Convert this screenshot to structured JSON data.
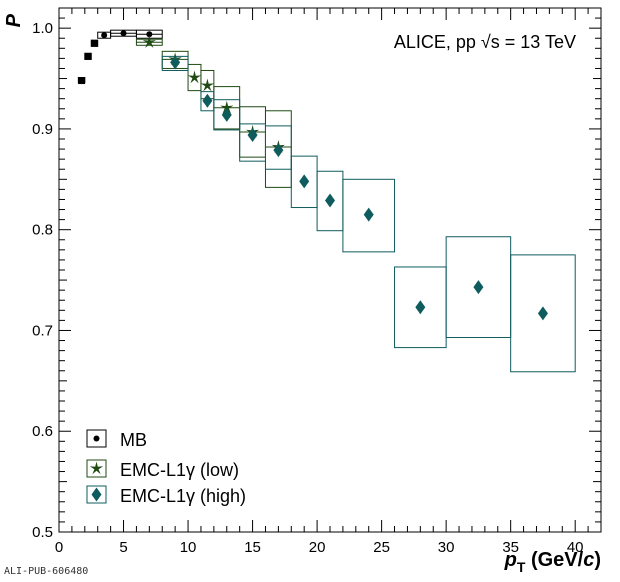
{
  "pub_id": "ALI-PUB-606480",
  "chart_data": {
    "type": "scatter",
    "annotation": "ALICE, pp √s = 13 TeV",
    "ylabel": "P",
    "xlabel_parts": [
      "p",
      "T",
      " (GeV/",
      "c",
      ")"
    ],
    "xlim": [
      0,
      42
    ],
    "ylim": [
      0.5,
      1.02
    ],
    "xticks": [
      0,
      5,
      10,
      15,
      20,
      25,
      30,
      35,
      40
    ],
    "yticks": [
      0.5,
      0.6,
      0.7,
      0.8,
      0.9,
      1.0
    ],
    "ytick_labels": [
      "0.5",
      "0.6",
      "0.7",
      "0.8",
      "0.9",
      "1.0"
    ],
    "legend_position": "bottom-left",
    "series": [
      {
        "name": "MB",
        "marker": "circle",
        "color": "#000000",
        "points": [
          {
            "x": 1.75,
            "y": 0.948,
            "xlo": 1.5,
            "xhi": 2.0,
            "slo": 0.946,
            "shi": 0.951
          },
          {
            "x": 2.25,
            "y": 0.972,
            "xlo": 2.0,
            "xhi": 2.5,
            "slo": 0.969,
            "shi": 0.975
          },
          {
            "x": 2.75,
            "y": 0.985,
            "xlo": 2.5,
            "xhi": 3.0,
            "slo": 0.982,
            "shi": 0.988
          },
          {
            "x": 3.5,
            "y": 0.993,
            "xlo": 3.0,
            "xhi": 4.0,
            "slo": 0.99,
            "shi": 0.996
          },
          {
            "x": 5.0,
            "y": 0.995,
            "xlo": 4.0,
            "xhi": 6.0,
            "slo": 0.992,
            "shi": 0.998
          },
          {
            "x": 7.0,
            "y": 0.994,
            "xlo": 6.0,
            "xhi": 8.0,
            "slo": 0.99,
            "shi": 0.998
          }
        ]
      },
      {
        "name": "EMC-L1γ (low)",
        "marker": "star",
        "color": "#1f4a12",
        "points": [
          {
            "x": 7.0,
            "y": 0.986,
            "xlo": 6.0,
            "xhi": 8.0,
            "slo": 0.983,
            "shi": 0.989
          },
          {
            "x": 9.0,
            "y": 0.969,
            "xlo": 8.0,
            "xhi": 10.0,
            "slo": 0.96,
            "shi": 0.977
          },
          {
            "x": 10.5,
            "y": 0.951,
            "xlo": 10.0,
            "xhi": 11.0,
            "slo": 0.938,
            "shi": 0.964
          },
          {
            "x": 11.5,
            "y": 0.943,
            "xlo": 11.0,
            "xhi": 12.0,
            "slo": 0.93,
            "shi": 0.958
          },
          {
            "x": 13.0,
            "y": 0.921,
            "xlo": 12.0,
            "xhi": 14.0,
            "slo": 0.9,
            "shi": 0.942
          },
          {
            "x": 15.0,
            "y": 0.897,
            "xlo": 14.0,
            "xhi": 16.0,
            "slo": 0.872,
            "shi": 0.922
          },
          {
            "x": 17.0,
            "y": 0.882,
            "xlo": 16.0,
            "xhi": 18.0,
            "slo": 0.842,
            "shi": 0.918
          }
        ]
      },
      {
        "name": "EMC-L1γ (high)",
        "marker": "diamond",
        "color": "#0f5c5e",
        "points": [
          {
            "x": 9.0,
            "y": 0.966,
            "xlo": 8.0,
            "xhi": 10.0,
            "slo": 0.958,
            "shi": 0.972
          },
          {
            "x": 11.5,
            "y": 0.928,
            "xlo": 11.0,
            "xhi": 12.0,
            "slo": 0.918,
            "shi": 0.937
          },
          {
            "x": 13.0,
            "y": 0.914,
            "xlo": 12.0,
            "xhi": 14.0,
            "slo": 0.899,
            "shi": 0.929
          },
          {
            "x": 15.0,
            "y": 0.894,
            "xlo": 14.0,
            "xhi": 16.0,
            "slo": 0.868,
            "shi": 0.905
          },
          {
            "x": 17.0,
            "y": 0.879,
            "xlo": 16.0,
            "xhi": 18.0,
            "slo": 0.86,
            "shi": 0.903
          },
          {
            "x": 19.0,
            "y": 0.848,
            "xlo": 18.0,
            "xhi": 20.0,
            "slo": 0.822,
            "shi": 0.873
          },
          {
            "x": 21.0,
            "y": 0.829,
            "xlo": 20.0,
            "xhi": 22.0,
            "slo": 0.799,
            "shi": 0.858
          },
          {
            "x": 24.0,
            "y": 0.815,
            "xlo": 22.0,
            "xhi": 26.0,
            "slo": 0.778,
            "shi": 0.85
          },
          {
            "x": 28.0,
            "y": 0.723,
            "xlo": 26.0,
            "xhi": 30.0,
            "slo": 0.683,
            "shi": 0.763
          },
          {
            "x": 32.5,
            "y": 0.743,
            "xlo": 30.0,
            "xhi": 35.0,
            "slo": 0.693,
            "shi": 0.793
          },
          {
            "x": 37.5,
            "y": 0.717,
            "xlo": 35.0,
            "xhi": 40.0,
            "slo": 0.659,
            "shi": 0.775
          }
        ]
      }
    ]
  }
}
